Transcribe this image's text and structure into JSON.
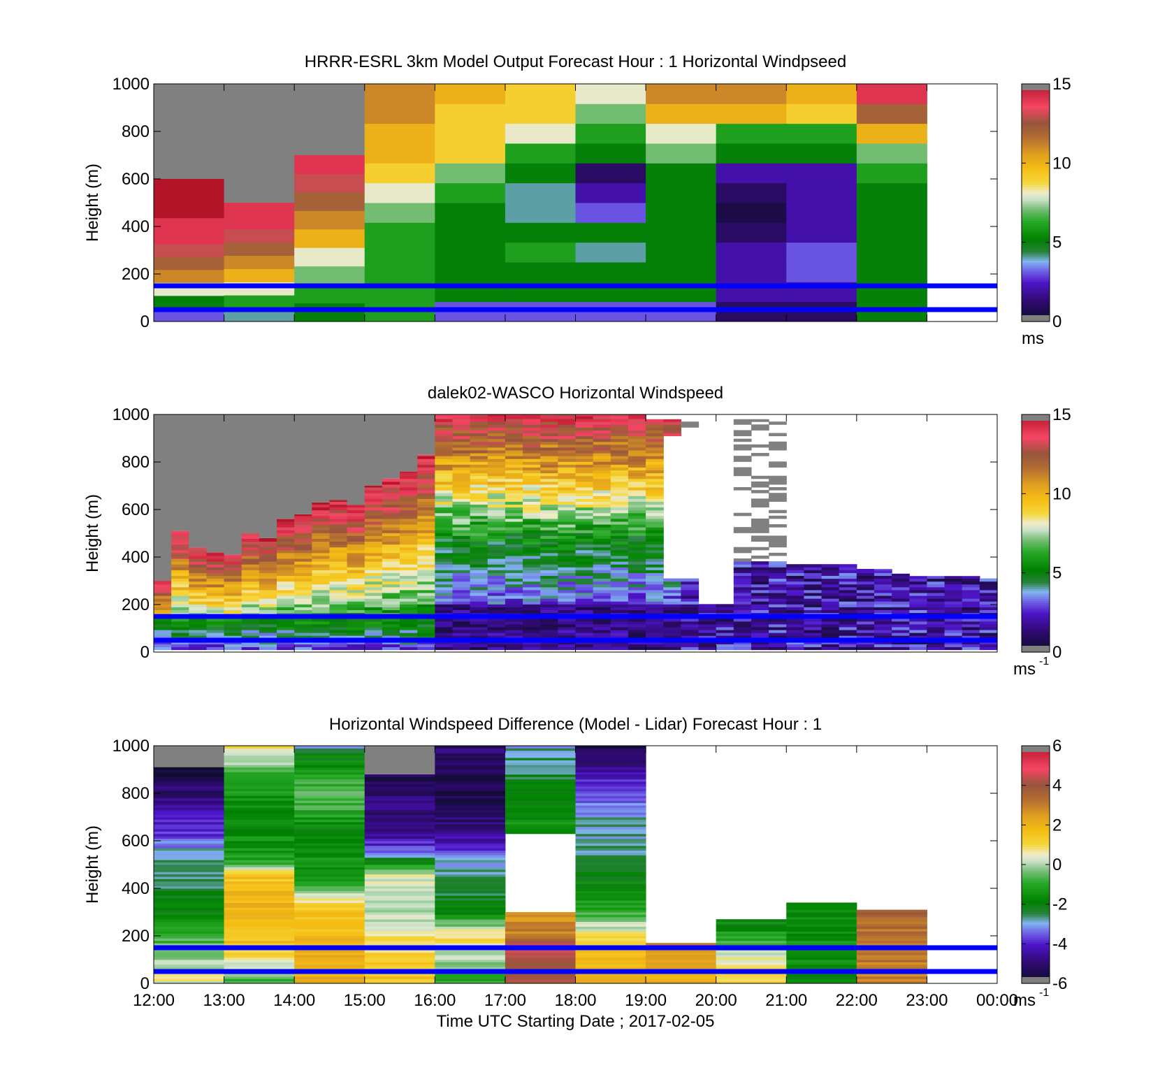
{
  "figure": {
    "xlabel": "Time UTC  Starting Date ; 2017-02-05",
    "x_ticks": [
      "12:00",
      "13:00",
      "14:00",
      "15:00",
      "16:00",
      "17:00",
      "18:00",
      "19:00",
      "20:00",
      "21:00",
      "22:00",
      "23:00",
      "00:00"
    ]
  },
  "chart_data": [
    {
      "type": "heatmap",
      "title": "HRRR-ESRL 3km Model Output   Forecast Hour : 1 Horizontal Windpseed",
      "ylabel": "Height (m)",
      "xlabel": "",
      "x_range": [
        "12:00",
        "00:00"
      ],
      "ylim": [
        0,
        1000
      ],
      "y_ticks": [
        "0",
        "200",
        "400",
        "600",
        "800",
        "1000"
      ],
      "colorbar": {
        "range": [
          0,
          15
        ],
        "ticks": [
          "0",
          "5",
          "10",
          "15"
        ],
        "unit": "ms",
        "unit_sup": ""
      },
      "reference_lines_m": [
        50,
        150
      ],
      "reference_line_color": "#0000ff",
      "grid": false,
      "columns": [
        {
          "start_hour": 12,
          "top_m": 600,
          "values": [
            3,
            5,
            8,
            11,
            12,
            13,
            14,
            14,
            15,
            15,
            15
          ]
        },
        {
          "start_hour": 13,
          "top_m": 500,
          "values": [
            4,
            6,
            8,
            10,
            11,
            12,
            13,
            14,
            14
          ]
        },
        {
          "start_hour": 14,
          "top_m": 700,
          "values": [
            5,
            6,
            7,
            8,
            10,
            11,
            12,
            13,
            14
          ]
        },
        {
          "start_hour": 15,
          "top_m": 1000,
          "values": [
            6,
            6,
            6,
            6,
            6,
            7,
            8,
            9,
            10,
            10,
            11,
            11
          ]
        },
        {
          "start_hour": 16,
          "top_m": 1000,
          "values": [
            3,
            5,
            5,
            5,
            5,
            5,
            6,
            7,
            9,
            9,
            9,
            10
          ]
        },
        {
          "start_hour": 17,
          "top_m": 1000,
          "values": [
            3,
            5,
            5,
            6,
            5,
            4,
            4,
            5,
            6,
            8,
            9,
            9
          ]
        },
        {
          "start_hour": 18,
          "top_m": 1000,
          "values": [
            3,
            5,
            5,
            4,
            5,
            3,
            2,
            1,
            5,
            6,
            7,
            8
          ]
        },
        {
          "start_hour": 19,
          "top_m": 1000,
          "values": [
            3,
            5,
            5,
            5,
            5,
            5,
            5,
            5,
            7,
            8,
            10,
            11
          ]
        },
        {
          "start_hour": 20,
          "top_m": 1000,
          "values": [
            1,
            2,
            2,
            2,
            1,
            0.5,
            1,
            2,
            5,
            6,
            10,
            11
          ]
        },
        {
          "start_hour": 21,
          "top_m": 1000,
          "values": [
            1,
            2,
            3,
            3,
            2,
            2,
            2,
            2,
            5,
            6,
            9,
            10
          ]
        },
        {
          "start_hour": 22,
          "top_m": 1000,
          "values": [
            5,
            5,
            5,
            5,
            5,
            5,
            5,
            6,
            7,
            10,
            12,
            14
          ]
        }
      ]
    },
    {
      "type": "heatmap",
      "title": "dalek02-WASCO  Horizontal Windspeed",
      "ylabel": "Height (m)",
      "xlabel": "",
      "x_range": [
        "12:00",
        "00:00"
      ],
      "ylim": [
        0,
        1000
      ],
      "y_ticks": [
        "0",
        "200",
        "400",
        "600",
        "800",
        "1000"
      ],
      "colorbar": {
        "range": [
          0,
          15
        ],
        "ticks": [
          "0",
          "5",
          "10",
          "15"
        ],
        "unit": "ms",
        "unit_sup": "-1"
      },
      "reference_lines_m": [
        50,
        150
      ],
      "reference_line_color": "#0000ff",
      "grid": false,
      "profile_interval_minutes": 15,
      "max_range_m": [
        300,
        510,
        440,
        420,
        410,
        500,
        480,
        560,
        580,
        630,
        640,
        620,
        700,
        730,
        760,
        830,
        1000,
        1000,
        1000,
        1000,
        1000,
        1000,
        1000,
        1000,
        1000,
        1000,
        1000,
        1000,
        980,
        980,
        980,
        980,
        980,
        980,
        980,
        980,
        370,
        370,
        370,
        370,
        350,
        350,
        330,
        320,
        320,
        320,
        320,
        310
      ],
      "gaps": [
        {
          "from_hour": 19.75,
          "to_hour": 20.25,
          "from_m": 200,
          "to_m": 1000
        },
        {
          "from_hour": 19.25,
          "to_hour": 19.75,
          "from_m": 300,
          "to_m": 900
        }
      ]
    },
    {
      "type": "heatmap",
      "title": "Horizontal Windspeed Difference (Model - Lidar) Forecast Hour : 1",
      "ylabel": "Height (m)",
      "xlabel": "Time UTC  Starting Date ; 2017-02-05",
      "x_range": [
        "12:00",
        "00:00"
      ],
      "ylim": [
        0,
        1000
      ],
      "y_ticks": [
        "0",
        "200",
        "400",
        "600",
        "800",
        "1000"
      ],
      "colorbar": {
        "range": [
          -6,
          6
        ],
        "ticks": [
          "-6",
          "-4",
          "-2",
          "0",
          "2",
          "4",
          "6"
        ],
        "unit": "ms",
        "unit_sup": "-1"
      },
      "reference_lines_m": [
        50,
        150
      ],
      "reference_line_color": "#0000ff",
      "grid": false,
      "columns": [
        {
          "start_hour": 12,
          "top_m": 910,
          "profile": [
            [
              0,
              0.5
            ],
            [
              150,
              -0.5
            ],
            [
              250,
              -1.5
            ],
            [
              400,
              -2.5
            ],
            [
              550,
              -3
            ],
            [
              650,
              -4
            ],
            [
              800,
              -5
            ],
            [
              900,
              -5.8
            ]
          ]
        },
        {
          "start_hour": 13,
          "top_m": 1000,
          "profile": [
            [
              0,
              -1
            ],
            [
              150,
              1.5
            ],
            [
              300,
              2
            ],
            [
              450,
              1.5
            ],
            [
              500,
              -1
            ],
            [
              700,
              -2
            ],
            [
              850,
              -1
            ],
            [
              950,
              0
            ],
            [
              1000,
              1
            ]
          ]
        },
        {
          "start_hour": 14,
          "top_m": 1000,
          "profile": [
            [
              0,
              2
            ],
            [
              150,
              2
            ],
            [
              300,
              1.5
            ],
            [
              420,
              -1
            ],
            [
              600,
              -2
            ],
            [
              800,
              -0.5
            ],
            [
              950,
              -2
            ],
            [
              1000,
              -3
            ]
          ]
        },
        {
          "start_hour": 15,
          "top_m": 880,
          "profile": [
            [
              0,
              1.5
            ],
            [
              150,
              1
            ],
            [
              300,
              0
            ],
            [
              450,
              0.5
            ],
            [
              550,
              -3.5
            ],
            [
              650,
              -5
            ],
            [
              800,
              -5
            ],
            [
              880,
              -5.5
            ]
          ]
        },
        {
          "start_hour": 16,
          "top_m": 1000,
          "profile": [
            [
              0,
              -1
            ],
            [
              150,
              0.5
            ],
            [
              200,
              1
            ],
            [
              300,
              -2
            ],
            [
              500,
              -3
            ],
            [
              650,
              -5
            ],
            [
              800,
              -5.5
            ],
            [
              1000,
              -5
            ]
          ]
        },
        {
          "start_hour": 17,
          "top_m": 1000,
          "profile": [
            [
              0,
              4
            ],
            [
              150,
              4.5
            ],
            [
              200,
              3
            ],
            [
              300,
              2.5
            ]
          ],
          "upper_profile": [
            [
              630,
              -1.5
            ],
            [
              800,
              -2
            ],
            [
              1000,
              -3
            ]
          ]
        },
        {
          "start_hour": 18,
          "top_m": 1000,
          "profile": [
            [
              0,
              2
            ],
            [
              150,
              1.5
            ],
            [
              300,
              -1
            ],
            [
              500,
              -2.5
            ],
            [
              700,
              -3
            ],
            [
              850,
              -4
            ],
            [
              1000,
              -5.5
            ]
          ]
        },
        {
          "start_hour": 19,
          "top_m": 170,
          "profile": [
            [
              0,
              2
            ],
            [
              100,
              2.5
            ],
            [
              170,
              3
            ]
          ]
        },
        {
          "start_hour": 20,
          "top_m": 270,
          "profile": [
            [
              0,
              1
            ],
            [
              100,
              0.5
            ],
            [
              170,
              -1
            ],
            [
              270,
              -2
            ]
          ]
        },
        {
          "start_hour": 21,
          "top_m": 340,
          "profile": [
            [
              0,
              -2
            ],
            [
              150,
              -1.5
            ],
            [
              340,
              -2
            ]
          ]
        },
        {
          "start_hour": 22,
          "top_m": 310,
          "profile": [
            [
              0,
              3
            ],
            [
              150,
              3
            ],
            [
              310,
              3.5
            ]
          ]
        }
      ]
    }
  ]
}
